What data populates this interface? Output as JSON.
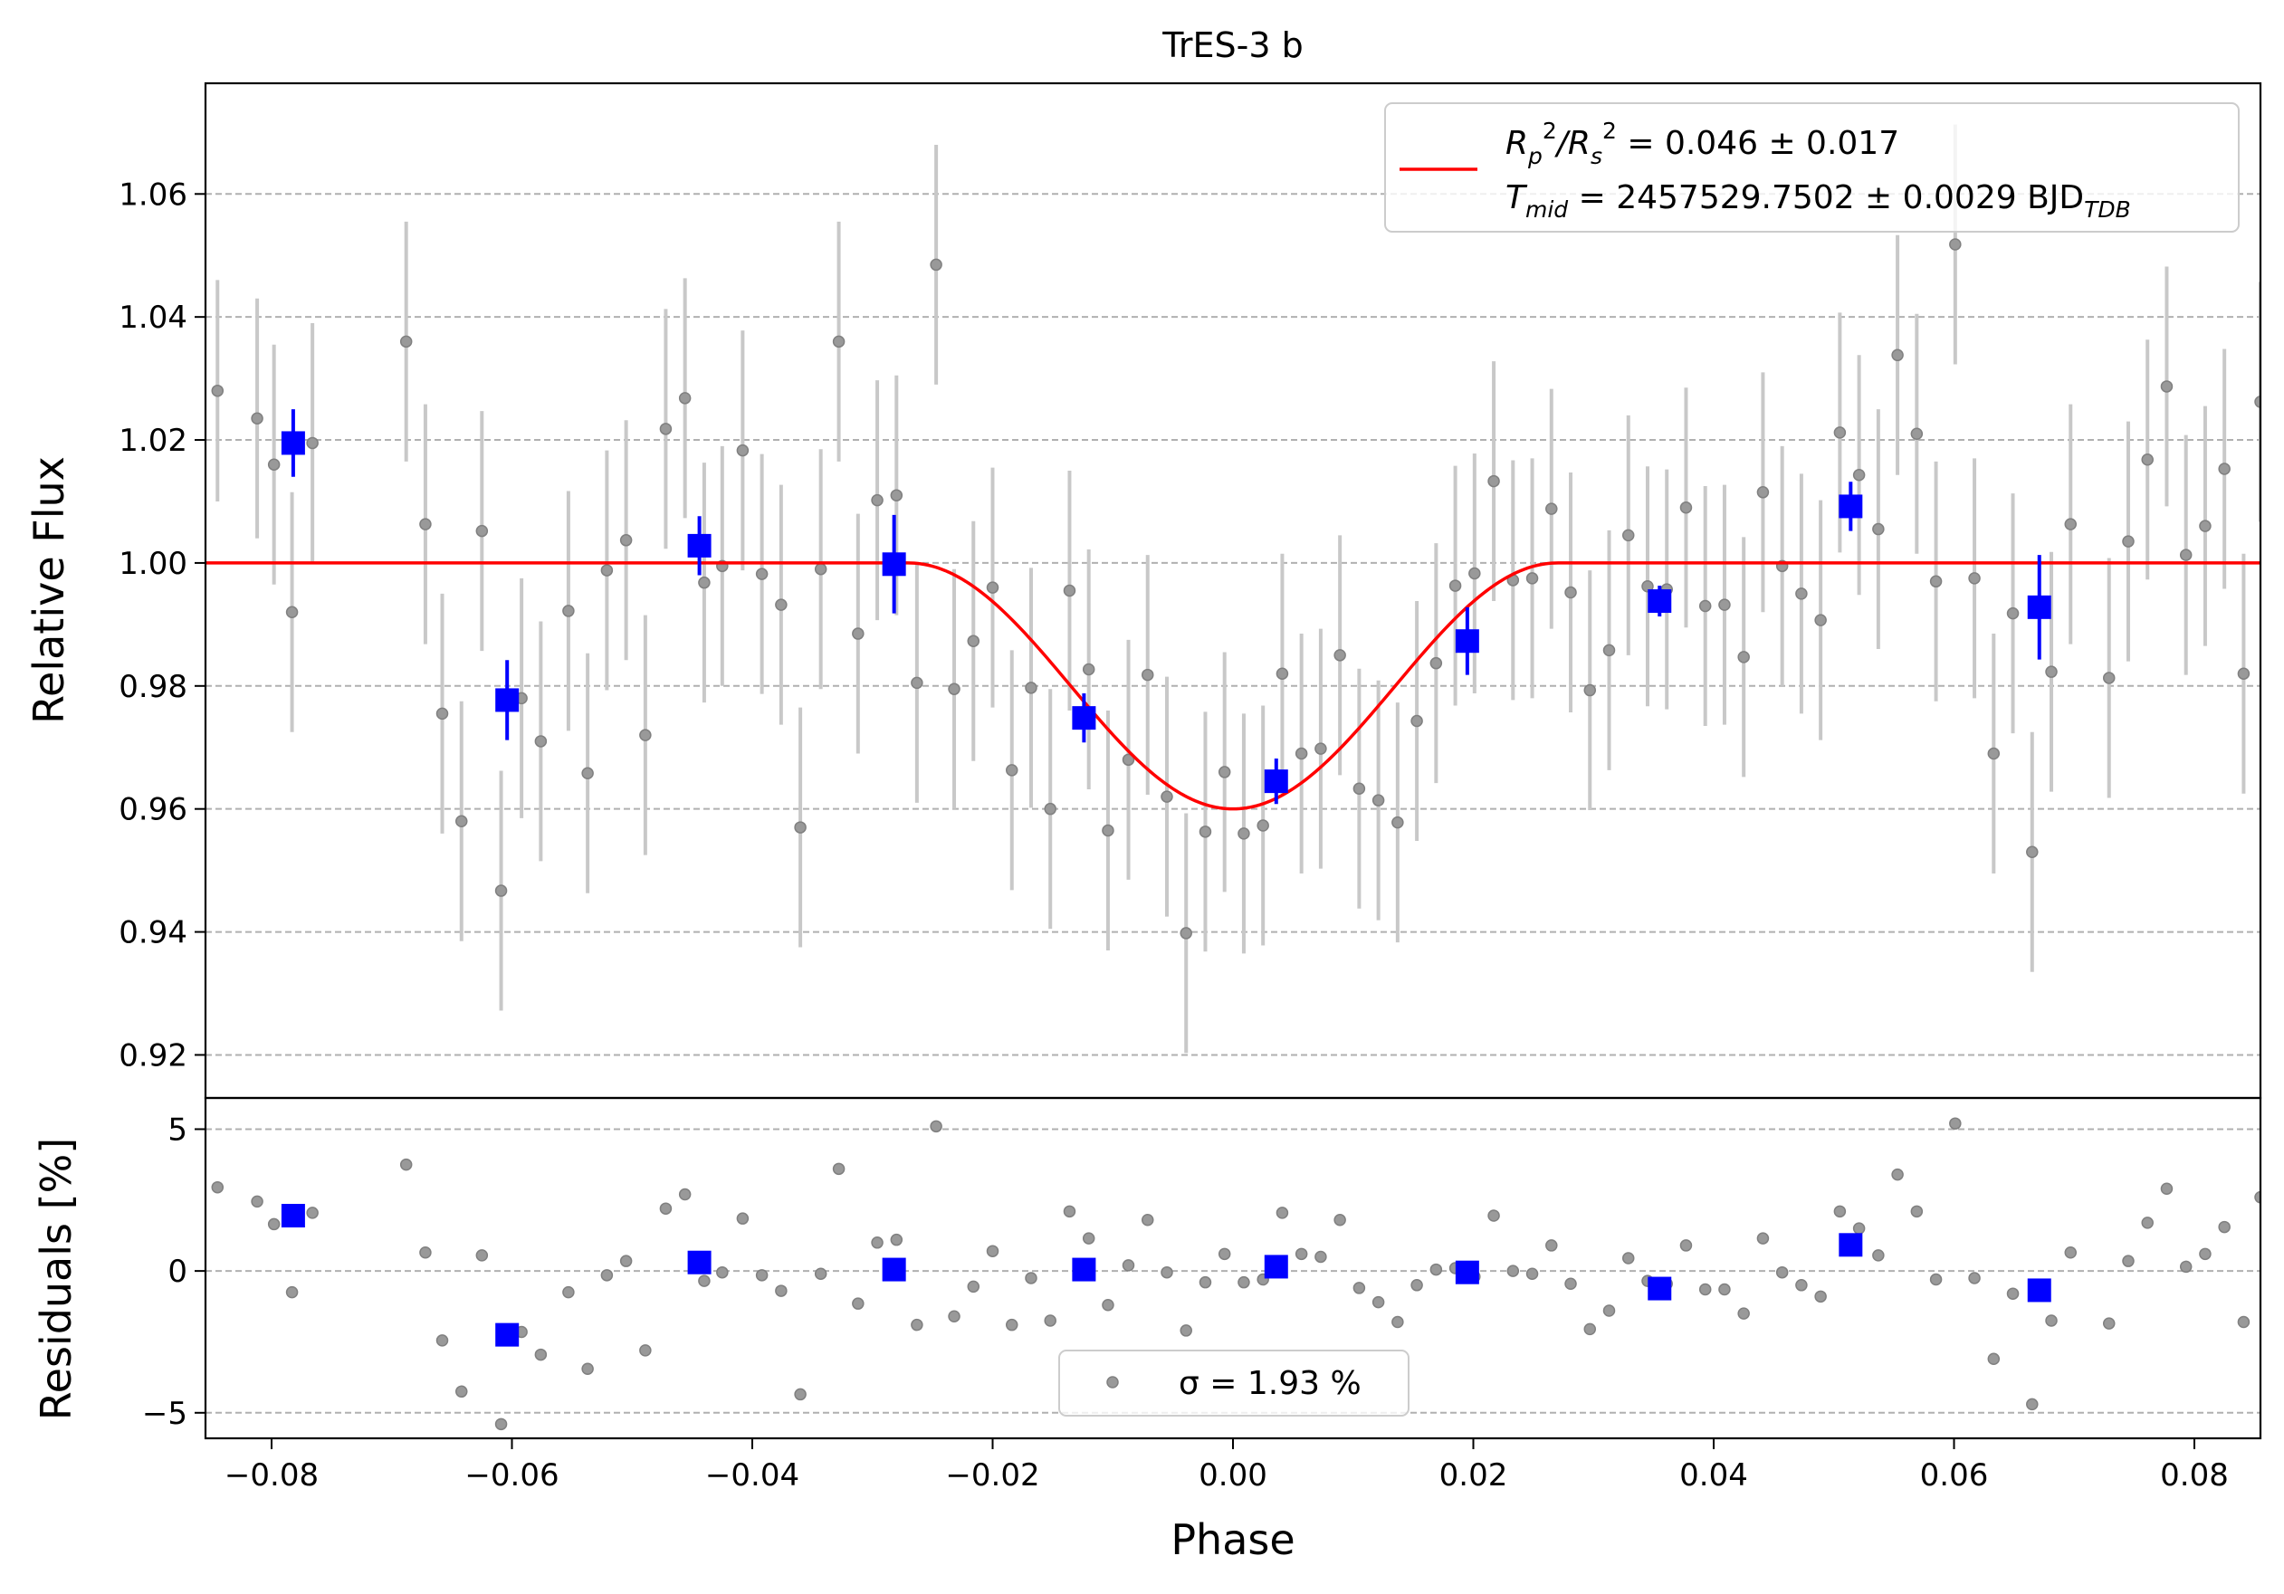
{
  "chart_data": {
    "type": "scatter",
    "title": "TrES-3 b",
    "xlabel": "Phase",
    "top_panel": {
      "ylabel": "Relative Flux",
      "xlim": [
        -0.0855,
        0.0855
      ],
      "ylim": [
        0.913,
        1.078
      ],
      "xticks": [
        -0.08,
        -0.06,
        -0.04,
        -0.02,
        0.0,
        0.02,
        0.04,
        0.06,
        0.08
      ],
      "xtick_labels": [
        "−0.08",
        "−0.06",
        "−0.04",
        "−0.02",
        "0.00",
        "0.02",
        "0.04",
        "0.06",
        "0.08"
      ],
      "yticks": [
        0.92,
        0.94,
        0.96,
        0.98,
        1.0,
        1.02,
        1.04,
        1.06
      ],
      "ytick_labels": [
        "0.92",
        "0.94",
        "0.96",
        "0.98",
        "1.00",
        "1.02",
        "1.04",
        "1.06"
      ],
      "grid": "horizontal dashed",
      "legend": {
        "placement": "top-right",
        "line1": "Rₚ²/Rₛ² = 0.046 ± 0.017",
        "line2": "T_mid = 2457529.7502 ± 0.0029 BJD_TDB",
        "line1_parts": [
          "R",
          "p",
          "2",
          "/R",
          "s",
          "2",
          " = 0.046 ± 0.017"
        ],
        "line2_parts": [
          "T",
          "mid",
          " = 2457529.7502 ± 0.0029 BJD",
          "TDB"
        ]
      },
      "series": [
        {
          "kind": "raw",
          "color": "#808080",
          "points": [
            [
              -0.0845,
              1.028,
              0.018
            ],
            [
              -0.0812,
              1.0235,
              0.0195
            ],
            [
              -0.0798,
              1.016,
              0.0195
            ],
            [
              -0.0783,
              0.992,
              0.0195
            ],
            [
              -0.0766,
              1.0195,
              0.0195
            ],
            [
              -0.0688,
              1.036,
              0.0195
            ],
            [
              -0.0672,
              1.0063,
              0.0195
            ],
            [
              -0.0658,
              0.9755,
              0.0195
            ],
            [
              -0.0642,
              0.958,
              0.0195
            ],
            [
              -0.0625,
              1.0052,
              0.0195
            ],
            [
              -0.0609,
              0.9467,
              0.0195
            ],
            [
              -0.0592,
              0.978,
              0.0195
            ],
            [
              -0.0576,
              0.971,
              0.0195
            ],
            [
              -0.0553,
              0.9922,
              0.0195
            ],
            [
              -0.0537,
              0.9658,
              0.0195
            ],
            [
              -0.0521,
              0.9988,
              0.0195
            ],
            [
              -0.0505,
              1.0037,
              0.0195
            ],
            [
              -0.0489,
              0.972,
              0.0195
            ],
            [
              -0.0472,
              1.0218,
              0.0195
            ],
            [
              -0.0456,
              1.0268,
              0.0195
            ],
            [
              -0.044,
              0.9968,
              0.0195
            ],
            [
              -0.0425,
              0.9995,
              0.0195
            ],
            [
              -0.0408,
              1.0183,
              0.0195
            ],
            [
              -0.0392,
              0.9982,
              0.0195
            ],
            [
              -0.0376,
              0.9932,
              0.0195
            ],
            [
              -0.036,
              0.957,
              0.0195
            ],
            [
              -0.0343,
              0.999,
              0.0195
            ],
            [
              -0.0328,
              1.036,
              0.0195
            ],
            [
              -0.0312,
              0.9885,
              0.0195
            ],
            [
              -0.0296,
              1.0102,
              0.0195
            ],
            [
              -0.028,
              1.011,
              0.0195
            ],
            [
              -0.0263,
              0.9805,
              0.0195
            ],
            [
              -0.0247,
              1.0485,
              0.0195
            ],
            [
              -0.0232,
              0.9795,
              0.0195
            ],
            [
              -0.0216,
              0.9873,
              0.0195
            ],
            [
              -0.02,
              0.996,
              0.0195
            ],
            [
              -0.0184,
              0.9663,
              0.0195
            ],
            [
              -0.0168,
              0.9797,
              0.0195
            ],
            [
              -0.0152,
              0.96,
              0.0195
            ],
            [
              -0.0136,
              0.9955,
              0.0195
            ],
            [
              -0.012,
              0.9827,
              0.0195
            ],
            [
              -0.0104,
              0.9565,
              0.0195
            ],
            [
              -0.0087,
              0.968,
              0.0195
            ],
            [
              -0.0071,
              0.9818,
              0.0195
            ],
            [
              -0.0055,
              0.962,
              0.0195
            ],
            [
              -0.0039,
              0.9398,
              0.0195
            ],
            [
              -0.0023,
              0.9563,
              0.0195
            ],
            [
              -0.0007,
              0.966,
              0.0195
            ],
            [
              0.0009,
              0.956,
              0.0195
            ],
            [
              0.0025,
              0.9573,
              0.0195
            ],
            [
              0.0041,
              0.982,
              0.0195
            ],
            [
              0.0057,
              0.969,
              0.0195
            ],
            [
              0.0073,
              0.9698,
              0.0195
            ],
            [
              0.0089,
              0.985,
              0.0195
            ],
            [
              0.0105,
              0.9633,
              0.0195
            ],
            [
              0.0121,
              0.9614,
              0.0195
            ],
            [
              0.0137,
              0.9578,
              0.0195
            ],
            [
              0.0153,
              0.9743,
              0.0195
            ],
            [
              0.0169,
              0.9837,
              0.0195
            ],
            [
              0.0185,
              0.9963,
              0.0195
            ],
            [
              0.0201,
              0.9983,
              0.0195
            ],
            [
              0.0217,
              1.0133,
              0.0195
            ],
            [
              0.0233,
              0.9972,
              0.0195
            ],
            [
              0.0249,
              0.9975,
              0.0195
            ],
            [
              0.0265,
              1.0088,
              0.0195
            ],
            [
              0.0281,
              0.9952,
              0.0195
            ],
            [
              0.0297,
              0.9793,
              0.0195
            ],
            [
              0.0313,
              0.9858,
              0.0195
            ],
            [
              0.0329,
              1.0045,
              0.0195
            ],
            [
              0.0345,
              0.9962,
              0.0195
            ],
            [
              0.0361,
              0.9957,
              0.0195
            ],
            [
              0.0377,
              1.009,
              0.0195
            ],
            [
              0.0393,
              0.993,
              0.0195
            ],
            [
              0.0409,
              0.9932,
              0.0195
            ],
            [
              0.0425,
              0.9847,
              0.0195
            ],
            [
              0.0441,
              1.0115,
              0.0195
            ],
            [
              0.0457,
              0.9995,
              0.0195
            ],
            [
              0.0473,
              0.995,
              0.0195
            ],
            [
              0.0489,
              0.9907,
              0.0195
            ],
            [
              0.0505,
              1.0212,
              0.0195
            ],
            [
              0.0521,
              1.0143,
              0.0195
            ],
            [
              0.0537,
              1.0055,
              0.0195
            ],
            [
              0.0553,
              1.0338,
              0.0195
            ],
            [
              0.0569,
              1.021,
              0.0195
            ],
            [
              0.0585,
              0.997,
              0.0195
            ],
            [
              0.0601,
              1.0518,
              0.0195
            ],
            [
              0.0617,
              0.9975,
              0.0195
            ],
            [
              0.0633,
              0.969,
              0.0195
            ],
            [
              0.0649,
              0.9918,
              0.0195
            ],
            [
              0.0665,
              0.953,
              0.0195
            ],
            [
              0.0681,
              0.9823,
              0.0195
            ],
            [
              0.0697,
              1.0063,
              0.0195
            ],
            [
              0.0729,
              0.9813,
              0.0195
            ],
            [
              0.0745,
              1.0035,
              0.0195
            ],
            [
              0.0761,
              1.0168,
              0.0195
            ],
            [
              0.0777,
              1.0287,
              0.0195
            ],
            [
              0.0793,
              1.0013,
              0.0195
            ],
            [
              0.0809,
              1.006,
              0.0195
            ],
            [
              0.0825,
              1.0153,
              0.0195
            ],
            [
              0.0841,
              0.982,
              0.0195
            ],
            [
              0.0855,
              1.0262,
              0.0195
            ]
          ]
        },
        {
          "kind": "binned",
          "color": "#0000ff",
          "points": [
            [
              -0.0782,
              1.0195,
              0.0055
            ],
            [
              -0.0604,
              0.9777,
              0.0065
            ],
            [
              -0.0444,
              1.0028,
              0.0048
            ],
            [
              -0.0282,
              0.9998,
              0.008
            ],
            [
              -0.0124,
              0.9748,
              0.004
            ],
            [
              0.0036,
              0.9645,
              0.0037
            ],
            [
              0.0195,
              0.9873,
              0.0055
            ],
            [
              0.0355,
              0.9938,
              0.0025
            ],
            [
              0.0514,
              1.0092,
              0.004
            ],
            [
              0.0671,
              0.9928,
              0.0085
            ]
          ]
        }
      ],
      "model": {
        "color": "#ff0000",
        "baseline": 1.0,
        "depth": 0.04,
        "t_start": -0.027,
        "t_end": 0.027
      }
    },
    "bottom_panel": {
      "ylabel": "Residuals [%]",
      "ylim": [
        -5.9,
        6.1
      ],
      "yticks": [
        -5,
        0,
        5
      ],
      "ytick_labels": [
        "−5",
        "0",
        "5"
      ],
      "grid": "horizontal dashed",
      "legend": {
        "placement": "bottom-center",
        "label": "σ = 1.93 %"
      },
      "raw_residuals": [
        [
          -0.0845,
          2.95
        ],
        [
          -0.0812,
          2.45
        ],
        [
          -0.0798,
          1.65
        ],
        [
          -0.0783,
          -0.75
        ],
        [
          -0.0766,
          2.05
        ],
        [
          -0.0688,
          3.75
        ],
        [
          -0.0672,
          0.65
        ],
        [
          -0.0658,
          -2.45
        ],
        [
          -0.0642,
          -4.25
        ],
        [
          -0.0625,
          0.55
        ],
        [
          -0.0609,
          -5.4
        ],
        [
          -0.0592,
          -2.15
        ],
        [
          -0.0576,
          -2.95
        ],
        [
          -0.0553,
          -0.75
        ],
        [
          -0.0537,
          -3.45
        ],
        [
          -0.0521,
          -0.15
        ],
        [
          -0.0505,
          0.35
        ],
        [
          -0.0489,
          -2.8
        ],
        [
          -0.0472,
          2.2
        ],
        [
          -0.0456,
          2.7
        ],
        [
          -0.044,
          -0.35
        ],
        [
          -0.0425,
          -0.05
        ],
        [
          -0.0408,
          1.85
        ],
        [
          -0.0392,
          -0.15
        ],
        [
          -0.0376,
          -0.7
        ],
        [
          -0.036,
          -4.35
        ],
        [
          -0.0343,
          -0.1
        ],
        [
          -0.0328,
          3.6
        ],
        [
          -0.0312,
          -1.15
        ],
        [
          -0.0296,
          1.0
        ],
        [
          -0.028,
          1.1
        ],
        [
          -0.0263,
          -1.9
        ],
        [
          -0.0247,
          5.1
        ],
        [
          -0.0232,
          -1.6
        ],
        [
          -0.0216,
          -0.55
        ],
        [
          -0.02,
          0.7
        ],
        [
          -0.0184,
          -1.9
        ],
        [
          -0.0168,
          -0.25
        ],
        [
          -0.0152,
          -1.75
        ],
        [
          -0.0136,
          2.1
        ],
        [
          -0.012,
          1.15
        ],
        [
          -0.0104,
          -1.2
        ],
        [
          -0.0087,
          0.2
        ],
        [
          -0.0071,
          1.8
        ],
        [
          -0.0055,
          -0.05
        ],
        [
          -0.0039,
          -2.1
        ],
        [
          -0.0023,
          -0.4
        ],
        [
          -0.0007,
          0.6
        ],
        [
          0.0009,
          -0.4
        ],
        [
          0.0025,
          -0.3
        ],
        [
          0.0041,
          2.05
        ],
        [
          0.0057,
          0.6
        ],
        [
          0.0073,
          0.5
        ],
        [
          0.0089,
          1.8
        ],
        [
          0.0105,
          -0.6
        ],
        [
          0.0121,
          -1.1
        ],
        [
          0.0137,
          -1.8
        ],
        [
          0.0153,
          -0.5
        ],
        [
          0.0169,
          0.05
        ],
        [
          0.0185,
          0.1
        ],
        [
          0.0201,
          -0.2
        ],
        [
          0.0217,
          1.95
        ],
        [
          0.0233,
          0.0
        ],
        [
          0.0249,
          -0.1
        ],
        [
          0.0265,
          0.9
        ],
        [
          0.0281,
          -0.45
        ],
        [
          0.0297,
          -2.05
        ],
        [
          0.0313,
          -1.4
        ],
        [
          0.0329,
          0.45
        ],
        [
          0.0345,
          -0.35
        ],
        [
          0.0361,
          -0.45
        ],
        [
          0.0377,
          0.9
        ],
        [
          0.0393,
          -0.65
        ],
        [
          0.0409,
          -0.65
        ],
        [
          0.0425,
          -1.5
        ],
        [
          0.0441,
          1.15
        ],
        [
          0.0457,
          -0.05
        ],
        [
          0.0473,
          -0.5
        ],
        [
          0.0489,
          -0.9
        ],
        [
          0.0505,
          2.1
        ],
        [
          0.0521,
          1.5
        ],
        [
          0.0537,
          0.55
        ],
        [
          0.0553,
          3.4
        ],
        [
          0.0569,
          2.1
        ],
        [
          0.0585,
          -0.3
        ],
        [
          0.0601,
          5.2
        ],
        [
          0.0617,
          -0.25
        ],
        [
          0.0633,
          -3.1
        ],
        [
          0.0649,
          -0.8
        ],
        [
          0.0665,
          -4.7
        ],
        [
          0.0681,
          -1.75
        ],
        [
          0.0697,
          0.65
        ],
        [
          0.0729,
          -1.85
        ],
        [
          0.0745,
          0.35
        ],
        [
          0.0761,
          1.7
        ],
        [
          0.0777,
          2.9
        ],
        [
          0.0793,
          0.15
        ],
        [
          0.0809,
          0.6
        ],
        [
          0.0825,
          1.55
        ],
        [
          0.0841,
          -1.8
        ],
        [
          0.0855,
          2.6
        ]
      ],
      "binned_residuals": [
        [
          -0.0782,
          1.95
        ],
        [
          -0.0604,
          -2.25
        ],
        [
          -0.0444,
          0.3
        ],
        [
          -0.0282,
          0.05
        ],
        [
          -0.0124,
          0.05
        ],
        [
          0.0036,
          0.15
        ],
        [
          0.0195,
          -0.05
        ],
        [
          0.0355,
          -0.62
        ],
        [
          0.0514,
          0.92
        ],
        [
          0.0671,
          -0.68
        ]
      ]
    }
  }
}
